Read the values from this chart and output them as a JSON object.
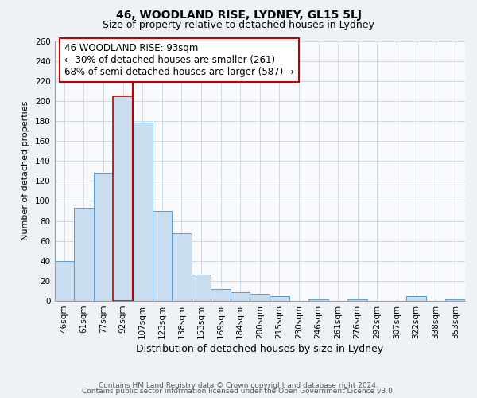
{
  "title": "46, WOODLAND RISE, LYDNEY, GL15 5LJ",
  "subtitle": "Size of property relative to detached houses in Lydney",
  "xlabel": "Distribution of detached houses by size in Lydney",
  "ylabel": "Number of detached properties",
  "bar_labels": [
    "46sqm",
    "61sqm",
    "77sqm",
    "92sqm",
    "107sqm",
    "123sqm",
    "138sqm",
    "153sqm",
    "169sqm",
    "184sqm",
    "200sqm",
    "215sqm",
    "230sqm",
    "246sqm",
    "261sqm",
    "276sqm",
    "292sqm",
    "307sqm",
    "322sqm",
    "338sqm",
    "353sqm"
  ],
  "bar_values": [
    40,
    93,
    128,
    205,
    178,
    90,
    68,
    26,
    12,
    9,
    7,
    5,
    0,
    2,
    0,
    2,
    0,
    0,
    5,
    0,
    2
  ],
  "bar_color": "#c9ddf0",
  "bar_edge_color": "#5b9bd5",
  "highlight_index": 3,
  "highlight_edge_color": "#c00000",
  "vline_color": "#c00000",
  "vline_x": 3.5,
  "annotation_line1": "46 WOODLAND RISE: 93sqm",
  "annotation_line2": "← 30% of detached houses are smaller (261)",
  "annotation_line3": "68% of semi-detached houses are larger (587) →",
  "annotation_box_color": "white",
  "annotation_box_edge_color": "#c00000",
  "ylim": [
    0,
    260
  ],
  "yticks": [
    0,
    20,
    40,
    60,
    80,
    100,
    120,
    140,
    160,
    180,
    200,
    220,
    240,
    260
  ],
  "footer_line1": "Contains HM Land Registry data © Crown copyright and database right 2024.",
  "footer_line2": "Contains public sector information licensed under the Open Government Licence v3.0.",
  "bg_color": "#eef2f7",
  "plot_bg_color": "#f8fafd",
  "title_fontsize": 10,
  "subtitle_fontsize": 9,
  "xlabel_fontsize": 9,
  "ylabel_fontsize": 8,
  "tick_fontsize": 7.5,
  "annotation_fontsize": 8.5,
  "footer_fontsize": 6.5
}
